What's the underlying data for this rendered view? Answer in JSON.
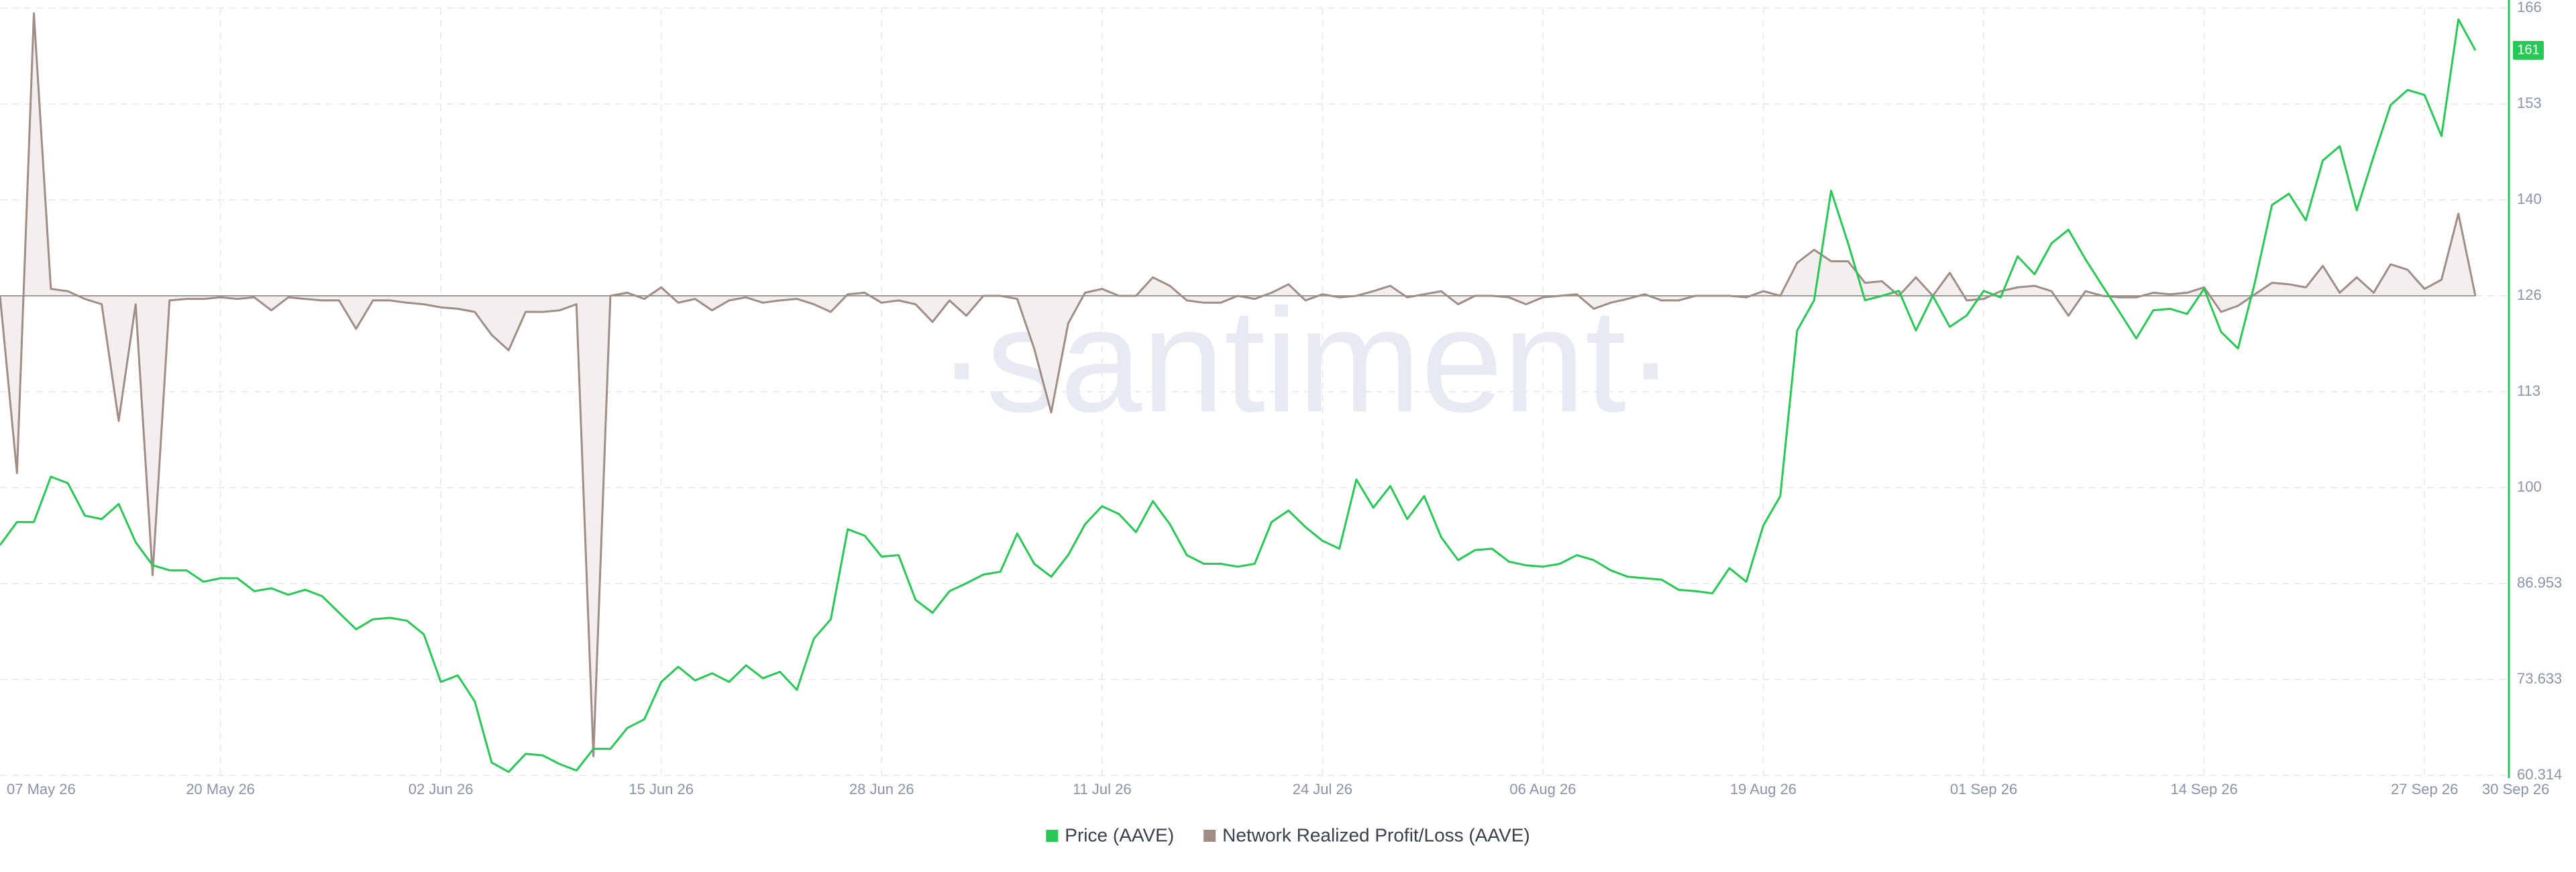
{
  "chart_data": {
    "type": "line",
    "watermark": "·santiment·",
    "x": [
      "2026-05-07",
      "2026-05-08",
      "2026-05-09",
      "2026-05-10",
      "2026-05-11",
      "2026-05-12",
      "2026-05-13",
      "2026-05-14",
      "2026-05-15",
      "2026-05-16",
      "2026-05-17",
      "2026-05-18",
      "2026-05-19",
      "2026-05-20",
      "2026-05-21",
      "2026-05-22",
      "2026-05-23",
      "2026-05-24",
      "2026-05-25",
      "2026-05-26",
      "2026-05-27",
      "2026-05-28",
      "2026-05-29",
      "2026-05-30",
      "2026-05-31",
      "2026-06-01",
      "2026-06-02",
      "2026-06-03",
      "2026-06-04",
      "2026-06-05",
      "2026-06-06",
      "2026-06-07",
      "2026-06-08",
      "2026-06-09",
      "2026-06-10",
      "2026-06-11",
      "2026-06-12",
      "2026-06-13",
      "2026-06-14",
      "2026-06-15",
      "2026-06-16",
      "2026-06-17",
      "2026-06-18",
      "2026-06-19",
      "2026-06-20",
      "2026-06-21",
      "2026-06-22",
      "2026-06-23",
      "2026-06-24",
      "2026-06-25",
      "2026-06-26",
      "2026-06-27",
      "2026-06-28",
      "2026-06-29",
      "2026-06-30",
      "2026-07-01",
      "2026-07-02",
      "2026-07-03",
      "2026-07-04",
      "2026-07-05",
      "2026-07-06",
      "2026-07-07",
      "2026-07-08",
      "2026-07-09",
      "2026-07-10",
      "2026-07-11",
      "2026-07-12",
      "2026-07-13",
      "2026-07-14",
      "2026-07-15",
      "2026-07-16",
      "2026-07-17",
      "2026-07-18",
      "2026-07-19",
      "2026-07-20",
      "2026-07-21",
      "2026-07-22",
      "2026-07-23",
      "2026-07-24",
      "2026-07-25",
      "2026-07-26",
      "2026-07-27",
      "2026-07-28",
      "2026-07-29",
      "2026-07-30",
      "2026-07-31",
      "2026-08-01",
      "2026-08-02",
      "2026-08-03",
      "2026-08-04",
      "2026-08-05",
      "2026-08-06",
      "2026-08-07",
      "2026-08-08",
      "2026-08-09",
      "2026-08-10",
      "2026-08-11",
      "2026-08-12",
      "2026-08-13",
      "2026-08-14",
      "2026-08-15",
      "2026-08-16",
      "2026-08-17",
      "2026-08-18",
      "2026-08-19",
      "2026-08-20",
      "2026-08-21",
      "2026-08-22",
      "2026-08-23",
      "2026-08-24",
      "2026-08-25",
      "2026-08-26",
      "2026-08-27",
      "2026-08-28",
      "2026-08-29",
      "2026-08-30",
      "2026-08-31",
      "2026-09-01",
      "2026-09-02",
      "2026-09-03",
      "2026-09-04",
      "2026-09-05",
      "2026-09-06",
      "2026-09-07",
      "2026-09-08",
      "2026-09-09",
      "2026-09-10",
      "2026-09-11",
      "2026-09-12",
      "2026-09-13",
      "2026-09-14",
      "2026-09-15",
      "2026-09-16",
      "2026-09-17",
      "2026-09-18",
      "2026-09-19",
      "2026-09-20",
      "2026-09-21",
      "2026-09-22",
      "2026-09-23",
      "2026-09-24",
      "2026-09-25",
      "2026-09-26",
      "2026-09-27",
      "2026-09-28",
      "2026-09-29",
      "2026-09-30"
    ],
    "xlim": [
      "2026-05-07",
      "2026-09-30"
    ],
    "xticks": [
      {
        "value": "2026-05-07",
        "label": "07 May 26"
      },
      {
        "value": "2026-05-20",
        "label": "20 May 26"
      },
      {
        "value": "2026-06-02",
        "label": "02 Jun 26"
      },
      {
        "value": "2026-06-15",
        "label": "15 Jun 26"
      },
      {
        "value": "2026-06-28",
        "label": "28 Jun 26"
      },
      {
        "value": "2026-07-11",
        "label": "11 Jul 26"
      },
      {
        "value": "2026-07-24",
        "label": "24 Jul 26"
      },
      {
        "value": "2026-08-06",
        "label": "06 Aug 26"
      },
      {
        "value": "2026-08-19",
        "label": "19 Aug 26"
      },
      {
        "value": "2026-09-01",
        "label": "01 Sep 26"
      },
      {
        "value": "2026-09-14",
        "label": "14 Sep 26"
      },
      {
        "value": "2026-09-27",
        "label": "27 Sep 26"
      },
      {
        "value": "2026-09-30",
        "label": "30 Sep 26"
      }
    ],
    "ylim": [
      60.314,
      166.87
    ],
    "yticks": [
      60.314,
      73.633,
      86.953,
      {
        "value": 100.272,
        "label": "100"
      },
      {
        "value": 113.592,
        "label": "113"
      },
      {
        "value": 126.911,
        "label": "126"
      },
      {
        "value": 140.231,
        "label": "140"
      },
      {
        "value": 153.55,
        "label": "153"
      },
      {
        "value": 166.87,
        "label": "166"
      }
    ],
    "y2lim": [
      -62.5,
      37.5
    ],
    "grid": true,
    "series": [
      {
        "name": "Price (AAVE)",
        "color": "#26c953",
        "axis": "y",
        "last_value_label": "161",
        "values": [
          92.3,
          95.5,
          95.5,
          101.8,
          100.9,
          96.4,
          95.9,
          98.0,
          92.7,
          89.5,
          88.8,
          88.8,
          87.2,
          87.7,
          87.7,
          85.9,
          86.3,
          85.4,
          86.1,
          85.2,
          82.9,
          80.6,
          82.0,
          82.2,
          81.8,
          79.9,
          73.3,
          74.2,
          70.6,
          62.1,
          60.8,
          63.3,
          63.1,
          61.9,
          61.0,
          64.0,
          64.0,
          66.9,
          68.1,
          73.3,
          75.4,
          73.5,
          74.5,
          73.3,
          75.6,
          73.8,
          74.7,
          72.2,
          79.3,
          82.0,
          94.5,
          93.6,
          90.7,
          90.9,
          84.7,
          82.9,
          85.9,
          87.0,
          88.2,
          88.6,
          93.9,
          89.7,
          87.9,
          90.9,
          95.2,
          97.7,
          96.6,
          94.1,
          98.4,
          95.2,
          90.9,
          89.7,
          89.7,
          89.3,
          89.7,
          95.5,
          97.1,
          94.8,
          92.9,
          91.8,
          101.4,
          97.5,
          100.5,
          95.9,
          99.1,
          93.4,
          90.2,
          91.6,
          91.8,
          90.0,
          89.5,
          89.3,
          89.7,
          90.9,
          90.2,
          88.8,
          87.9,
          87.7,
          87.5,
          86.1,
          85.9,
          85.6,
          89.1,
          87.2,
          95.0,
          99.1,
          122.1,
          126.3,
          141.5,
          134.2,
          126.3,
          126.9,
          127.6,
          122.1,
          126.9,
          122.6,
          124.2,
          127.6,
          126.7,
          132.4,
          129.9,
          134.2,
          136.1,
          132.0,
          128.3,
          124.7,
          121.0,
          124.9,
          125.1,
          124.4,
          127.9,
          121.9,
          119.6,
          128.8,
          139.5,
          141.1,
          137.4,
          145.7,
          147.7,
          138.8,
          146.3,
          153.4,
          155.5,
          154.8,
          149.1,
          165.3,
          161
        ]
      },
      {
        "name": "Network Realized Profit/Loss (AAVE)",
        "color": "#a08d86",
        "axis": "y2",
        "values": [
          0,
          -23.1,
          36.8,
          0.9,
          0.6,
          -0.4,
          -1.1,
          -16.3,
          -1.1,
          -36.4,
          -0.6,
          -0.4,
          -0.4,
          -0.2,
          -0.4,
          -0.2,
          -1.9,
          -0.2,
          -0.4,
          -0.6,
          -0.6,
          -4.3,
          -0.6,
          -0.6,
          -0.9,
          -1.1,
          -1.5,
          -1.7,
          -2.1,
          -5.1,
          -7.1,
          -2.1,
          -2.1,
          -1.9,
          -1.1,
          -60.0,
          0,
          0.4,
          -0.4,
          1.1,
          -0.9,
          -0.4,
          -1.9,
          -0.6,
          -0.2,
          -0.9,
          -0.6,
          -0.4,
          -1.1,
          -2.1,
          0.2,
          0.4,
          -0.9,
          -0.6,
          -1.1,
          -3.4,
          -0.6,
          -2.6,
          0,
          0,
          -0.4,
          -6.9,
          -15.2,
          -3.6,
          0.4,
          0.9,
          0,
          0,
          2.4,
          1.3,
          -0.6,
          -0.9,
          -0.9,
          0,
          -0.4,
          0.4,
          1.5,
          -0.6,
          0.2,
          -0.2,
          0,
          0.6,
          1.3,
          -0.2,
          0.2,
          0.6,
          -1.1,
          0,
          0,
          -0.2,
          -1.1,
          -0.2,
          0,
          0.2,
          -1.7,
          -0.9,
          -0.4,
          0.2,
          -0.6,
          -0.6,
          0,
          0,
          0,
          -0.2,
          0.6,
          0,
          4.3,
          6.0,
          4.5,
          4.5,
          1.7,
          1.9,
          0,
          2.4,
          0,
          3.0,
          -0.6,
          -0.4,
          0.6,
          1.1,
          1.3,
          0.6,
          -2.6,
          0.6,
          0,
          -0.2,
          -0.2,
          0.4,
          0.2,
          0.4,
          1.1,
          -2.1,
          -1.3,
          0.2,
          1.7,
          1.5,
          1.1,
          3.9,
          0.4,
          2.4,
          0.4,
          4.1,
          3.4,
          0.9,
          2.1,
          10.7,
          0
        ]
      }
    ]
  }
}
